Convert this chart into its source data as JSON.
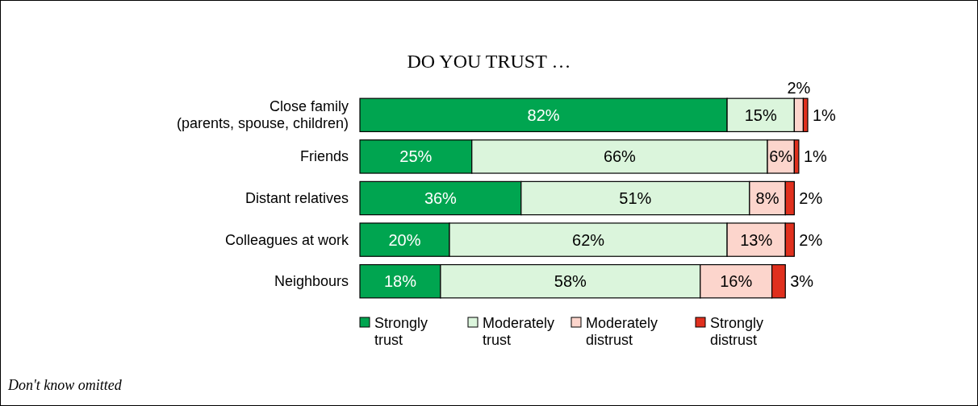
{
  "chart_data": {
    "type": "bar",
    "orientation": "horizontal",
    "stacked": true,
    "title": "DO YOU TRUST …",
    "categories": [
      "Close family\n(parents, spouse, children)",
      "Friends",
      "Distant relatives",
      "Colleagues at work",
      "Neighbours"
    ],
    "tick_labels": "y",
    "legend": "bottom",
    "series": [
      {
        "name": "Strongly\ntrust",
        "color": "#00a550",
        "values": [
          82,
          25,
          36,
          20,
          18
        ],
        "value_labels": [
          "82%",
          "25%",
          "36%",
          "20%",
          "18%"
        ]
      },
      {
        "name": "Moderately\ntrust",
        "color": "#dbf5dc",
        "values": [
          15,
          66,
          51,
          62,
          58
        ],
        "value_labels": [
          "15%",
          "66%",
          "51%",
          "62%",
          "58%"
        ]
      },
      {
        "name": "Moderately\ndistrust",
        "color": "#fcd5cc",
        "values": [
          2,
          6,
          8,
          13,
          16
        ],
        "value_labels": [
          "2%",
          "6%",
          "8%",
          "13%",
          "16%"
        ]
      },
      {
        "name": "Strongly\ndistrust",
        "color": "#e0301e",
        "values": [
          1,
          1,
          2,
          2,
          3
        ],
        "value_labels": [
          "1%",
          "1%",
          "2%",
          "2%",
          "3%"
        ]
      }
    ],
    "annotations": [
      "Don't know omitted"
    ]
  }
}
